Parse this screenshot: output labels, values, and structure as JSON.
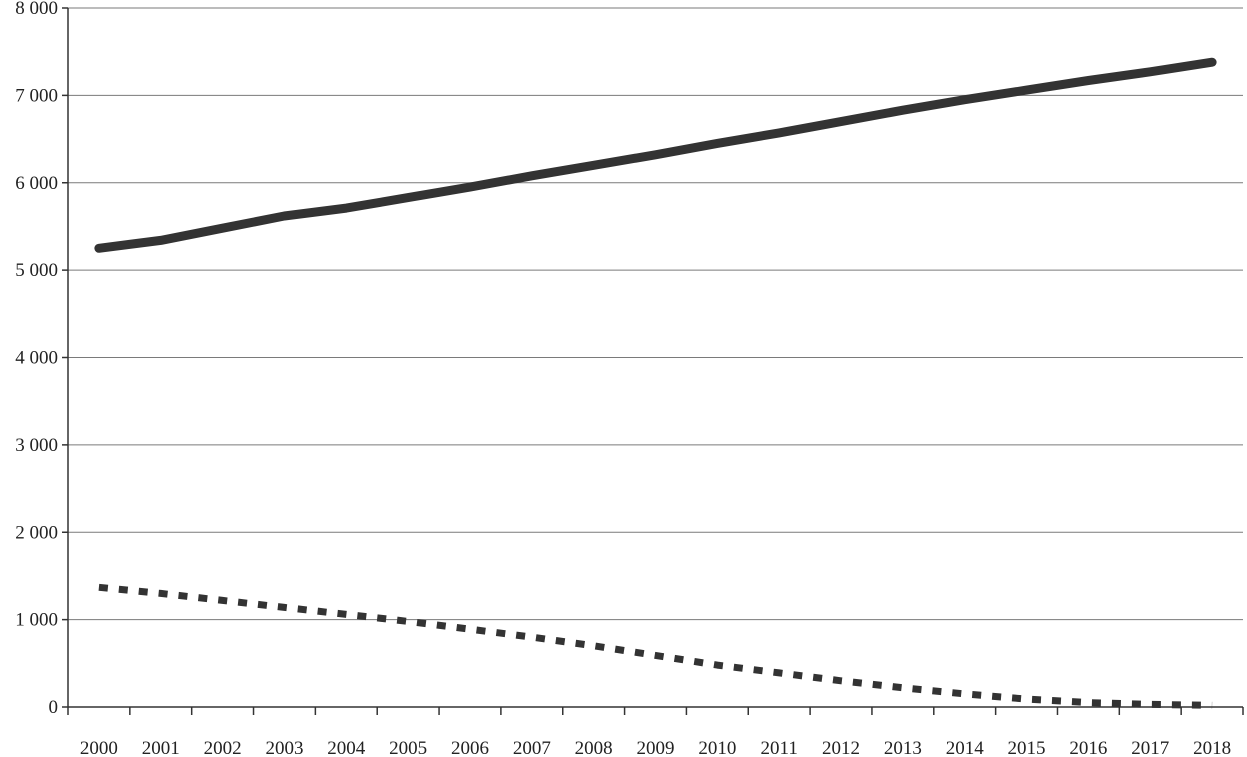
{
  "chart_data": {
    "type": "line",
    "title": "",
    "xlabel": "",
    "ylabel": "",
    "x": [
      "2000",
      "2001",
      "2002",
      "2003",
      "2004",
      "2005",
      "2006",
      "2007",
      "2008",
      "2009",
      "2010",
      "2011",
      "2012",
      "2013",
      "2014",
      "2015",
      "2016",
      "2017",
      "2018"
    ],
    "ylim": [
      0,
      8000
    ],
    "y_ticks": [
      0,
      1000,
      2000,
      3000,
      4000,
      5000,
      6000,
      7000,
      8000
    ],
    "y_tick_labels": [
      "0",
      "1 000",
      "2 000",
      "3 000",
      "4 000",
      "5 000",
      "6 000",
      "7 000",
      "8 000"
    ],
    "grid": true,
    "legend": "none",
    "series": [
      {
        "style": "solid",
        "color": "#333333",
        "values": [
          5250,
          5340,
          5480,
          5620,
          5710,
          5830,
          5950,
          6080,
          6200,
          6320,
          6450,
          6570,
          6700,
          6830,
          6950,
          7060,
          7170,
          7270,
          7380
        ]
      },
      {
        "style": "dotted",
        "color": "#333333",
        "values": [
          1370,
          1300,
          1220,
          1140,
          1060,
          980,
          890,
          800,
          700,
          590,
          480,
          390,
          300,
          220,
          150,
          90,
          50,
          30,
          20
        ]
      }
    ]
  }
}
